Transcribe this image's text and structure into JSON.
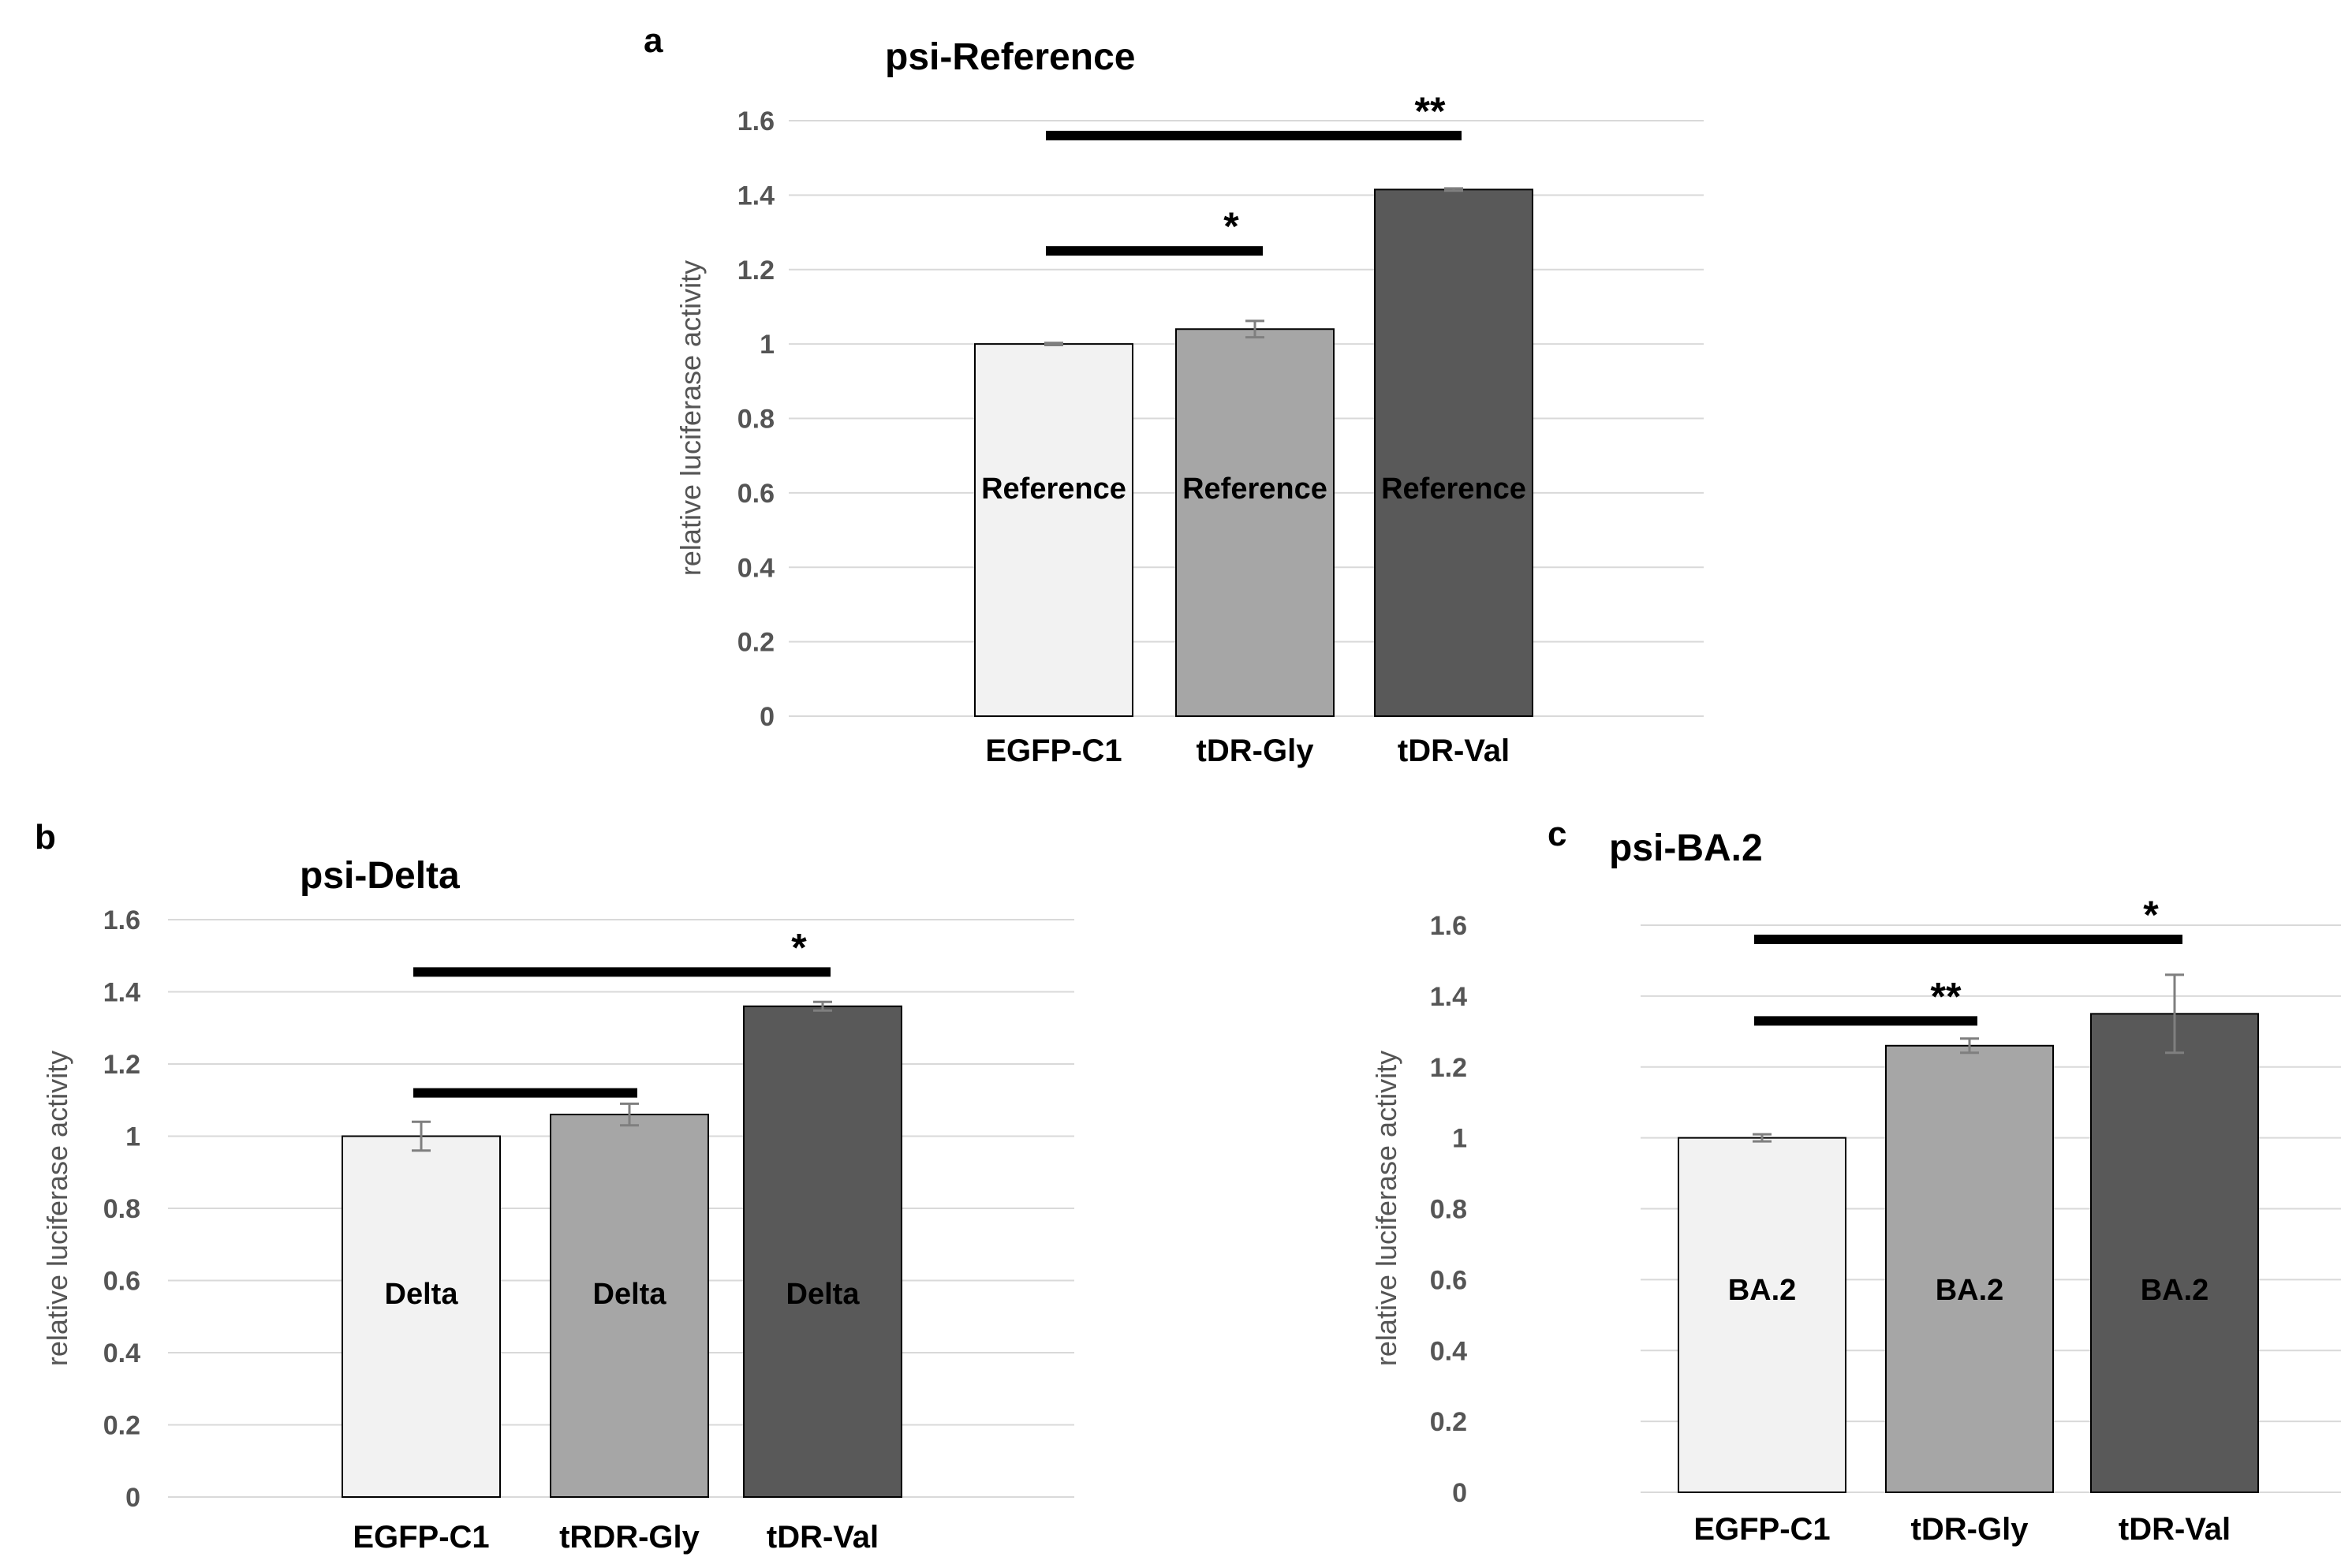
{
  "chart_data": [
    {
      "panel": "a",
      "type": "bar",
      "title": "psi-Reference",
      "xlabel": "",
      "ylabel": "relative luciferase activity",
      "ylim": [
        0,
        1.6
      ],
      "yticks": [
        0,
        0.2,
        0.4,
        0.6,
        0.8,
        1,
        1.2,
        1.4,
        1.6
      ],
      "grid": true,
      "categories": [
        "EGFP-C1",
        "tDR-Gly",
        "tDR-Val"
      ],
      "values": [
        1.0,
        1.04,
        1.415
      ],
      "errors": [
        0.003,
        0.022,
        0.003
      ],
      "bar_labels": [
        "Reference",
        "Reference",
        "Reference"
      ],
      "bar_colors": [
        "#f2f2f2",
        "#a6a6a6",
        "#595959"
      ],
      "bar_label_colors": [
        "#000000",
        "#000000",
        "#000000"
      ],
      "significance": [
        {
          "from": 0,
          "to": 1,
          "y": 1.25,
          "label": "*"
        },
        {
          "from": 0,
          "to": 2,
          "y": 1.56,
          "label": "**"
        }
      ]
    },
    {
      "panel": "b",
      "type": "bar",
      "title": "psi-Delta",
      "xlabel": "",
      "ylabel": "relative luciferase activity",
      "ylim": [
        0,
        1.6
      ],
      "yticks": [
        0,
        0.2,
        0.4,
        0.6,
        0.8,
        1,
        1.2,
        1.4,
        1.6
      ],
      "grid": true,
      "categories": [
        "EGFP-C1",
        "tRDR-Gly",
        "tDR-Val"
      ],
      "values": [
        1.0,
        1.06,
        1.36
      ],
      "errors": [
        0.04,
        0.03,
        0.012
      ],
      "bar_labels": [
        "Delta",
        "Delta",
        "Delta"
      ],
      "bar_colors": [
        "#f2f2f2",
        "#a6a6a6",
        "#595959"
      ],
      "bar_label_colors": [
        "#000000",
        "#000000",
        "#000000"
      ],
      "significance": [
        {
          "from": 0,
          "to": 1,
          "y": 1.12,
          "label": ""
        },
        {
          "from": 0,
          "to": 2,
          "y": 1.455,
          "label": "*"
        }
      ]
    },
    {
      "panel": "c",
      "type": "bar",
      "title": "psi-BA.2",
      "xlabel": "",
      "ylabel": "relative luciferase activity",
      "ylim": [
        0,
        1.6
      ],
      "yticks": [
        0,
        0.2,
        0.4,
        0.6,
        0.8,
        1,
        1.2,
        1.4,
        1.6
      ],
      "grid": true,
      "categories": [
        "EGFP-C1",
        "tDR-Gly",
        "tDR-Val"
      ],
      "values": [
        1.0,
        1.26,
        1.35
      ],
      "errors": [
        0.01,
        0.02,
        0.11
      ],
      "bar_labels": [
        "BA.2",
        "BA.2",
        "BA.2"
      ],
      "bar_colors": [
        "#f2f2f2",
        "#a6a6a6",
        "#595959"
      ],
      "bar_label_colors": [
        "#000000",
        "#000000",
        "#000000"
      ],
      "significance": [
        {
          "from": 0,
          "to": 1,
          "y": 1.33,
          "label": "**"
        },
        {
          "from": 0,
          "to": 2,
          "y": 1.56,
          "label": "*"
        }
      ]
    }
  ]
}
